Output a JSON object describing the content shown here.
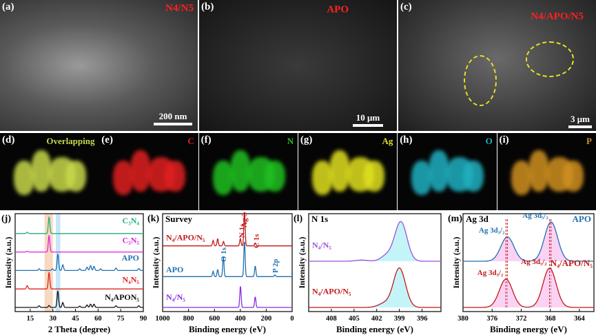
{
  "sem_panels": [
    {
      "letter": "(a)",
      "label": "N4/N5",
      "scale": "200 nm"
    },
    {
      "letter": "(b)",
      "label": "APO",
      "scale": "10 μm"
    },
    {
      "letter": "(c)",
      "label": "N4/APO/N5",
      "scale": "3 μm"
    }
  ],
  "eds_panels": [
    {
      "letter": "(d)",
      "label": "Overlapping",
      "color": "#c8d84a"
    },
    {
      "letter": "(e)",
      "label": "C",
      "color": "#e02020"
    },
    {
      "letter": "(f)",
      "label": "N",
      "color": "#20c020"
    },
    {
      "letter": "(g)",
      "label": "Ag",
      "color": "#e0e020"
    },
    {
      "letter": "(h)",
      "label": "O",
      "color": "#20b0c0"
    },
    {
      "letter": "(i)",
      "label": "P",
      "color": "#d09020"
    }
  ],
  "chart_data": [
    {
      "letter": "(j)",
      "type": "line",
      "title": "",
      "xlabel": "2 Theta (degree)",
      "ylabel": "Intensity (a.u.)",
      "xlim": [
        5,
        90
      ],
      "xticks": [
        "15",
        "30",
        "45",
        "60",
        "75",
        "90"
      ],
      "xtick_values": [
        15,
        30,
        45,
        60,
        75,
        90
      ],
      "highlight_bands": [
        {
          "range": [
            24.5,
            30
          ],
          "color": "#f8d8c0"
        },
        {
          "range": [
            32,
            35
          ],
          "color": "#c8e6fa"
        }
      ],
      "series": [
        {
          "name": "C₃N₄",
          "color": "#20b070",
          "peaks": [
            [
              13,
              0.08
            ],
            [
              27.5,
              1
            ]
          ]
        },
        {
          "name": "C₃N₅",
          "color": "#e020e0",
          "peaks": [
            [
              13,
              0.05
            ],
            [
              27.5,
              1
            ]
          ]
        },
        {
          "name": "APO",
          "color": "#1f6fb0",
          "peaks": [
            [
              20.9,
              0.1
            ],
            [
              29.7,
              0.1
            ],
            [
              33.3,
              1
            ],
            [
              36.6,
              0.35
            ],
            [
              47.8,
              0.1
            ],
            [
              52.7,
              0.2
            ],
            [
              55,
              0.3
            ],
            [
              57.3,
              0.25
            ],
            [
              61.7,
              0.1
            ],
            [
              71.9,
              0.15
            ],
            [
              87,
              0.12
            ]
          ]
        },
        {
          "name": "N₄N₅",
          "color": "#e02020",
          "peaks": [
            [
              13,
              0.2
            ],
            [
              27.5,
              1
            ]
          ]
        },
        {
          "name": "N₄APON₅",
          "color": "#111111",
          "peaks": [
            [
              20.9,
              0.1
            ],
            [
              27.5,
              0.12
            ],
            [
              33.3,
              1
            ],
            [
              36.6,
              0.3
            ],
            [
              47.8,
              0.08
            ],
            [
              52.7,
              0.15
            ],
            [
              55,
              0.2
            ],
            [
              57.3,
              0.2
            ],
            [
              71.9,
              0.1
            ],
            [
              87,
              0.1
            ]
          ]
        }
      ]
    },
    {
      "letter": "(k)",
      "type": "line",
      "title": "Survey",
      "xlabel": "Binding energy (eV)",
      "ylabel": "Intensity (a.u.)",
      "xlim": [
        1000,
        0
      ],
      "xticks": [
        "1000",
        "800",
        "600",
        "400",
        "200",
        "0"
      ],
      "xtick_values": [
        1000,
        800,
        600,
        400,
        200,
        0
      ],
      "annotations": [
        "N 1s",
        "Ag 3d",
        "C 1s",
        "O 1s",
        "P 2p"
      ],
      "series": [
        {
          "name": "N₄/APO/N₅",
          "color": "#c01818",
          "peaks": [
            [
              610,
              0.15
            ],
            [
              575,
              0.2
            ],
            [
              530,
              0.12
            ],
            [
              400,
              0.2
            ],
            [
              368,
              1
            ],
            [
              285,
              0.08
            ]
          ]
        },
        {
          "name": "APO",
          "color": "#1f6fb0",
          "peaks": [
            [
              610,
              0.15
            ],
            [
              575,
              0.2
            ],
            [
              531,
              0.55
            ],
            [
              368,
              1
            ],
            [
              285,
              0.3
            ],
            [
              133,
              0.05
            ]
          ]
        },
        {
          "name": "N₄/N₅",
          "color": "#8a2be2",
          "peaks": [
            [
              399,
              0.6
            ],
            [
              285,
              0.3
            ]
          ]
        }
      ]
    },
    {
      "letter": "(l)",
      "type": "line",
      "title": "N 1s",
      "xlabel": "Binding energy (eV)",
      "ylabel": "Intensity (a.u.)",
      "xlim": [
        411,
        393.5
      ],
      "xticks": [
        "408",
        "405",
        "402",
        "399",
        "396"
      ],
      "xtick_values": [
        408,
        405,
        402,
        399,
        396
      ],
      "series": [
        {
          "name": "N₄/N₅",
          "color": "#9a50e0",
          "peaks": [
            [
              398.8,
              1
            ],
            [
              400.6,
              0.15
            ],
            [
              404,
              0.03
            ]
          ]
        },
        {
          "name": "N₄/APO/N₅",
          "color": "#c01818",
          "peaks": [
            [
              399.0,
              1
            ],
            [
              401,
              0.1
            ]
          ]
        }
      ]
    },
    {
      "letter": "(m)",
      "type": "line",
      "title": "Ag 3d",
      "xlabel": "Binding energy (eV)",
      "ylabel": "Intensity (a.u.)",
      "xlim": [
        380,
        362
      ],
      "xticks": [
        "380",
        "376",
        "372",
        "368",
        "364"
      ],
      "xtick_values": [
        380,
        376,
        372,
        368,
        364
      ],
      "series": [
        {
          "name": "APO",
          "color": "#1f6fb0",
          "peaks": [
            [
              373.9,
              0.62
            ],
            [
              367.9,
              1
            ]
          ],
          "peak_labels": [
            "Ag 3d₃/₂",
            "Ag 3d₅/₂"
          ]
        },
        {
          "name": "N₄/APO/N₅",
          "color": "#c01818",
          "peaks": [
            [
              374.1,
              0.72
            ],
            [
              368.1,
              1
            ]
          ],
          "peak_labels": [
            "Ag 3d₃/₂",
            "Ag 3d₅/₂"
          ]
        }
      ]
    }
  ]
}
